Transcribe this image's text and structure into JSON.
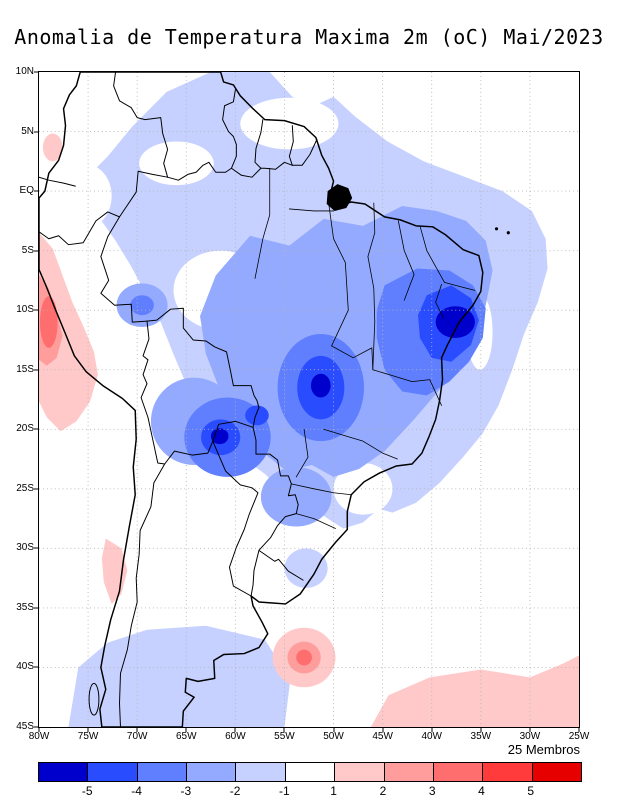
{
  "title": "Anomalia de Temperatura Maxima 2m (oC) Mai/2023",
  "ensemble_label": "25 Membros",
  "axes": {
    "lat_ticks": [
      "10N",
      "5N",
      "EQ",
      "5S",
      "10S",
      "15S",
      "20S",
      "25S",
      "30S",
      "35S",
      "40S",
      "45S"
    ],
    "lon_ticks": [
      "80W",
      "75W",
      "70W",
      "65W",
      "60W",
      "55W",
      "50W",
      "45W",
      "40W",
      "35W",
      "30W",
      "25W"
    ]
  },
  "colorbar": {
    "boundary_labels": [
      "-5",
      "-4",
      "-3",
      "-2",
      "-1",
      "1",
      "2",
      "3",
      "4",
      "5"
    ],
    "colors": [
      "#0000cd",
      "#2a4cff",
      "#5f7fff",
      "#93aaff",
      "#c6d1ff",
      "#ffffff",
      "#ffc9c9",
      "#ff9d9d",
      "#ff6e6e",
      "#ff3b3b",
      "#e60000"
    ]
  },
  "chart_data": {
    "type": "heatmap",
    "subtype": "filled-contour-map",
    "title": "Anomalia de Temperatura Maxima 2m (oC) Mai/2023",
    "region": "South America",
    "unit": "oC",
    "lon_range": [
      "80W",
      "25W"
    ],
    "lat_range": [
      "45S",
      "10N"
    ],
    "contour_levels": [
      -5,
      -4,
      -3,
      -2,
      -1,
      1,
      2,
      3,
      4,
      5
    ],
    "legend_position": "bottom",
    "grid": "dotted",
    "negative_anomaly_regions": [
      {
        "area": "Northeast Brazil interior (~44W-38W, 4S-10S)",
        "value_oC": "below -5 core, -4 to -5 surrounding"
      },
      {
        "area": "Central Brazil (~52W-47W, 8S-15S)",
        "value_oC": "-4 to below -5 core"
      },
      {
        "area": "Rondonia/Mato Grosso/Bolivia border (~62W-58W, 12S-17S)",
        "value_oC": "-4 to below -5 core"
      },
      {
        "area": "Most of central/northern Brazil and adjacent Atlantic",
        "value_oC": "-1 to -3"
      },
      {
        "area": "Southern South America (~58W-50W, 36S-45S) and Patagonia Andes",
        "value_oC": "-1 to -2"
      }
    ],
    "positive_anomaly_regions": [
      {
        "area": "Peru coastal strip (~80W-75W, 5S-17S)",
        "value_oC": "+1 to +3"
      },
      {
        "area": "Central Chile coast (~71W, 30S-35S)",
        "value_oC": "+1 to +2"
      },
      {
        "area": "South Atlantic blob (~53W, 40S)",
        "value_oC": "+1 to +3"
      },
      {
        "area": "South Atlantic band bottom-right (~45W-25W, 42S-45S)",
        "value_oC": "+1 to +2"
      }
    ]
  }
}
